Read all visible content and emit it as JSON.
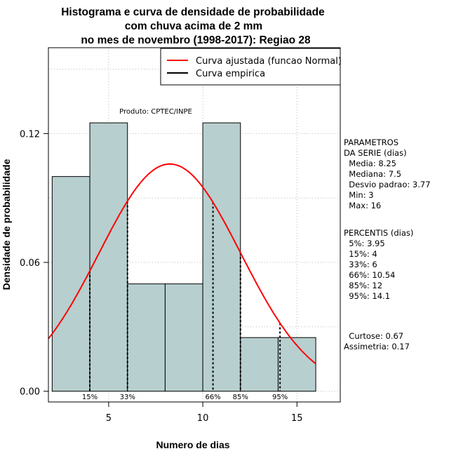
{
  "chart_data": {
    "type": "bar",
    "title": [
      "Histograma e curva de densidade de probabilidade",
      "com chuva acima de 2 mm",
      "no mes de novembro (1998-2017): Regiao 28"
    ],
    "xlabel": "Numero de dias",
    "ylabel": "Densidade de probabilidade",
    "xlim": [
      1.8,
      17.3
    ],
    "ylim": [
      -0.005,
      0.16
    ],
    "x_ticks": [
      5,
      10,
      15
    ],
    "y_ticks": [
      0.0,
      0.06,
      0.12
    ],
    "y_tick_labels": [
      "0.00",
      "0.06",
      "0.12"
    ],
    "grid": true,
    "bins": [
      {
        "x0": 2,
        "x1": 4,
        "density": 0.1
      },
      {
        "x0": 4,
        "x1": 6,
        "density": 0.125
      },
      {
        "x0": 6,
        "x1": 8,
        "density": 0.05
      },
      {
        "x0": 8,
        "x1": 10,
        "density": 0.05
      },
      {
        "x0": 10,
        "x1": 12,
        "density": 0.125
      },
      {
        "x0": 12,
        "x1": 14,
        "density": 0.025
      },
      {
        "x0": 14,
        "x1": 16,
        "density": 0.025
      }
    ],
    "normal_curve": {
      "mean": 8.25,
      "sd": 3.77
    },
    "percentile_lines": [
      {
        "label": "15%",
        "x": 4
      },
      {
        "label": "33%",
        "x": 6
      },
      {
        "label": "66%",
        "x": 10.54
      },
      {
        "label": "85%",
        "x": 12
      },
      {
        "label": "95%",
        "x": 14.1
      }
    ],
    "legend": {
      "placement": "top-right",
      "entries": [
        {
          "label": "Curva ajustada (funcao Normal)",
          "color": "#ff0000"
        },
        {
          "label": "Curva empirica",
          "color": "#000000"
        }
      ]
    },
    "annotation": "Produto: CPTEC/INPE"
  },
  "side_panel": {
    "parametros": [
      "PARAMETROS",
      "DA SERIE (dias)",
      "  Media: 8.25",
      "  Mediana: 7.5",
      "  Desvio padrao: 3.77",
      "  Min: 3",
      "  Max: 16"
    ],
    "percentis": [
      "PERCENTIS (dias)",
      "  5%: 3.95",
      "  15%: 4",
      "  33%: 6",
      "  66%: 10.54",
      "  85%: 12",
      "  95%: 14.1"
    ],
    "stats": [
      "  Curtose: 0.67",
      "Assimetria: 0.17"
    ]
  },
  "colors": {
    "bar_fill": "#b8cfcf",
    "curve": "#ff0000",
    "grid": "#bbbbbb"
  }
}
